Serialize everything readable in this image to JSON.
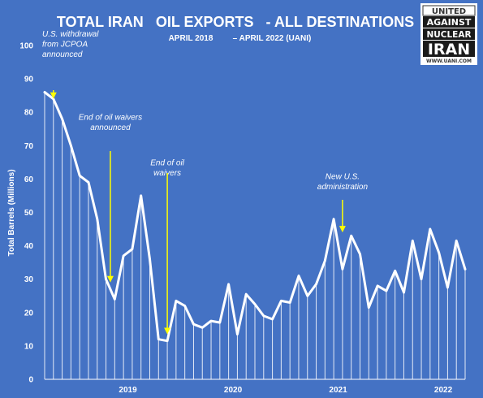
{
  "chart_data": {
    "type": "line",
    "title": "TOTAL IRAN   OIL EXPORTS   - ALL DESTINATIONS",
    "subtitle_left": "APRIL 2018",
    "subtitle_right": "– APRIL 2022 (UANI)",
    "ylabel": "Total Barrels (Millions)",
    "ylim": [
      0,
      100
    ],
    "y_ticks": [
      "0",
      "10",
      "20",
      "30",
      "40",
      "50",
      "60",
      "70",
      "80",
      "90",
      "100"
    ],
    "x_ticks": [
      {
        "label": "2019",
        "index": 9.5
      },
      {
        "label": "2020",
        "index": 21.5
      },
      {
        "label": "2021",
        "index": 33.5
      },
      {
        "label": "2022",
        "index": 45.5
      }
    ],
    "grid": "drop lines to baseline",
    "colors": {
      "background": "#4472c4",
      "line": "#ffffff",
      "arrows": "#ffff00"
    },
    "series": [
      {
        "values": [
          86,
          84,
          78,
          70,
          61,
          59,
          48,
          30,
          24,
          37,
          39,
          55,
          36,
          12,
          11.5,
          23.5,
          22,
          16.5,
          15.5,
          17.5,
          17,
          28.5,
          13.5,
          25.5,
          22.5,
          19,
          18,
          23.5,
          23,
          31,
          25,
          28.5,
          35.5,
          48,
          33,
          43,
          37.5,
          21.5,
          28,
          26.5,
          32.5,
          26,
          41.5,
          30,
          45,
          38,
          27.5,
          41.5,
          33
        ]
      }
    ],
    "annotations": [
      {
        "lines": [
          "U.S. withdrawal",
          "from JCPOA",
          "announced"
        ],
        "index": 1,
        "value": 84
      },
      {
        "lines": [
          "End of oil waivers",
          "announced"
        ],
        "index": 7.5,
        "value": 29
      },
      {
        "lines": [
          "End of oil",
          "waivers"
        ],
        "index": 14,
        "value": 13.5
      },
      {
        "lines": [
          "New U.S.",
          "administration"
        ],
        "index": 34,
        "value": 44
      }
    ]
  },
  "logo": {
    "lines": [
      "UNITED",
      "AGAINST",
      "NUCLEAR",
      "IRAN"
    ],
    "url": "WWW.UANI.COM",
    "icon": "uani-logo"
  }
}
